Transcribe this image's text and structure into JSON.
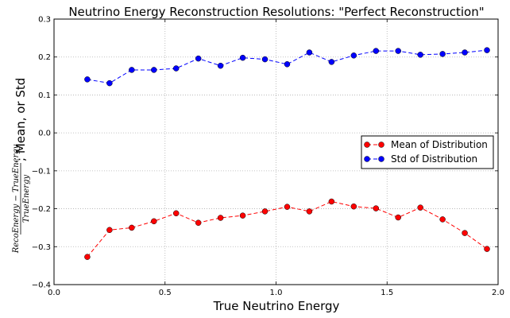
{
  "chart_data": {
    "type": "line",
    "title": "Neutrino Energy Reconstruction Resolutions: \"Perfect Reconstruction\"",
    "xlabel": "True Neutrino Energy",
    "ylabel_numerator": "RecoEnergy − TrueEnergy",
    "ylabel_denominator": "TrueEnergy",
    "ylabel_suffix": "; Mean, or Std",
    "xlim": [
      0.0,
      2.0
    ],
    "ylim": [
      -0.4,
      0.3
    ],
    "x_ticks": [
      "0.0",
      "0.5",
      "1.0",
      "1.5",
      "2.0"
    ],
    "y_ticks": [
      "0.3",
      "0.2",
      "0.1",
      "0.0",
      "−0.1",
      "−0.2",
      "−0.3",
      "−0.4"
    ],
    "grid": true,
    "legend_position": "right",
    "x": [
      0.15,
      0.25,
      0.35,
      0.45,
      0.55,
      0.65,
      0.75,
      0.85,
      0.95,
      1.05,
      1.15,
      1.25,
      1.35,
      1.45,
      1.55,
      1.65,
      1.75,
      1.85,
      1.95
    ],
    "series": [
      {
        "name": "Mean of Distribution",
        "color": "#ff0000",
        "values": [
          -0.327,
          -0.256,
          -0.25,
          -0.233,
          -0.212,
          -0.237,
          -0.224,
          -0.218,
          -0.207,
          -0.195,
          -0.207,
          -0.181,
          -0.194,
          -0.199,
          -0.223,
          -0.197,
          -0.228,
          -0.264,
          -0.306
        ]
      },
      {
        "name": "Std of Distribution",
        "color": "#0000ff",
        "values": [
          0.141,
          0.131,
          0.166,
          0.166,
          0.17,
          0.196,
          0.177,
          0.198,
          0.194,
          0.181,
          0.212,
          0.187,
          0.204,
          0.216,
          0.216,
          0.206,
          0.208,
          0.212,
          0.218
        ]
      }
    ]
  }
}
